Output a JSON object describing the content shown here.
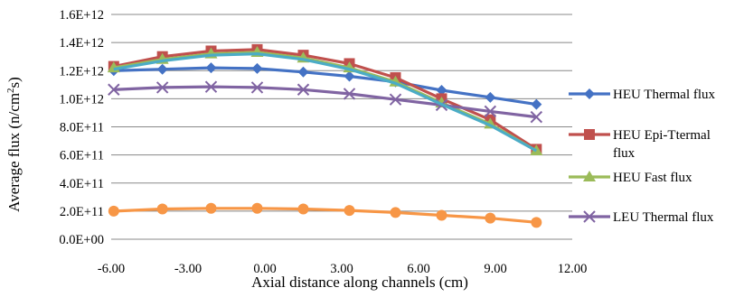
{
  "chart_data": {
    "type": "line",
    "title": "",
    "xlabel": "Axial distance along channels (cm)",
    "ylabel": "Average  flux (n/cm",
    "ylabel_superscript": "2",
    "ylabel_suffix": "s)",
    "xlim": [
      -6.0,
      12.0
    ],
    "ylim": [
      0,
      1600000000000.0
    ],
    "x_ticks": [
      "-6.00",
      "-3.00",
      "0.00",
      "3.00",
      "6.00",
      "9.00",
      "12.00"
    ],
    "y_ticks": [
      "0.0E+00",
      "2.0E+11",
      "4.0E+11",
      "6.0E+11",
      "8.0E+11",
      "1.0E+12",
      "1.2E+12",
      "1.4E+12",
      "1.6E+12"
    ],
    "grid": "horizontal",
    "legend_position": "right",
    "x": [
      -5.9,
      -4.0,
      -2.1,
      -0.3,
      1.5,
      3.3,
      5.1,
      6.9,
      8.8,
      10.6
    ],
    "series": [
      {
        "name": "HEU Thermal flux",
        "color": "#4472C4",
        "marker": "diamond",
        "values": [
          1200000000000.0,
          1210000000000.0,
          1220000000000.0,
          1215000000000.0,
          1190000000000.0,
          1160000000000.0,
          1120000000000.0,
          1060000000000.0,
          1010000000000.0,
          960000000000.0
        ]
      },
      {
        "name": "HEU Epi-Ttermal flux",
        "color": "#C0504D",
        "marker": "square",
        "values": [
          1230000000000.0,
          1300000000000.0,
          1340000000000.0,
          1350000000000.0,
          1310000000000.0,
          1250000000000.0,
          1150000000000.0,
          1000000000000.0,
          850000000000.0,
          640000000000.0
        ]
      },
      {
        "name": "HEU Fast flux",
        "color": "#9BBB59",
        "marker": "triangle",
        "values": [
          1220000000000.0,
          1280000000000.0,
          1320000000000.0,
          1330000000000.0,
          1290000000000.0,
          1220000000000.0,
          1120000000000.0,
          970000000000.0,
          820000000000.0,
          630000000000.0
        ]
      },
      {
        "name": "LEU Thermal flux",
        "color": "#8064A2",
        "marker": "x",
        "values": [
          1065000000000.0,
          1080000000000.0,
          1085000000000.0,
          1080000000000.0,
          1065000000000.0,
          1035000000000.0,
          995000000000.0,
          955000000000.0,
          910000000000.0,
          870000000000.0
        ]
      },
      {
        "name": "",
        "color": "#4BACC6",
        "marker": "none",
        "values": [
          1210000000000.0,
          1270000000000.0,
          1310000000000.0,
          1320000000000.0,
          1280000000000.0,
          1210000000000.0,
          1110000000000.0,
          960000000000.0,
          810000000000.0,
          630000000000.0
        ]
      },
      {
        "name": "",
        "color": "#F79646",
        "marker": "circle",
        "values": [
          200000000000.0,
          215000000000.0,
          220000000000.0,
          220000000000.0,
          215000000000.0,
          205000000000.0,
          190000000000.0,
          170000000000.0,
          150000000000.0,
          120000000000.0
        ]
      }
    ],
    "legend": [
      {
        "label": "HEU Thermal flux",
        "series": 0
      },
      {
        "label_lines": [
          "HEU Epi-Ttermal",
          "flux"
        ],
        "series": 1
      },
      {
        "label": "HEU Fast flux",
        "series": 2
      },
      {
        "label": "LEU Thermal flux",
        "series": 3
      }
    ]
  }
}
